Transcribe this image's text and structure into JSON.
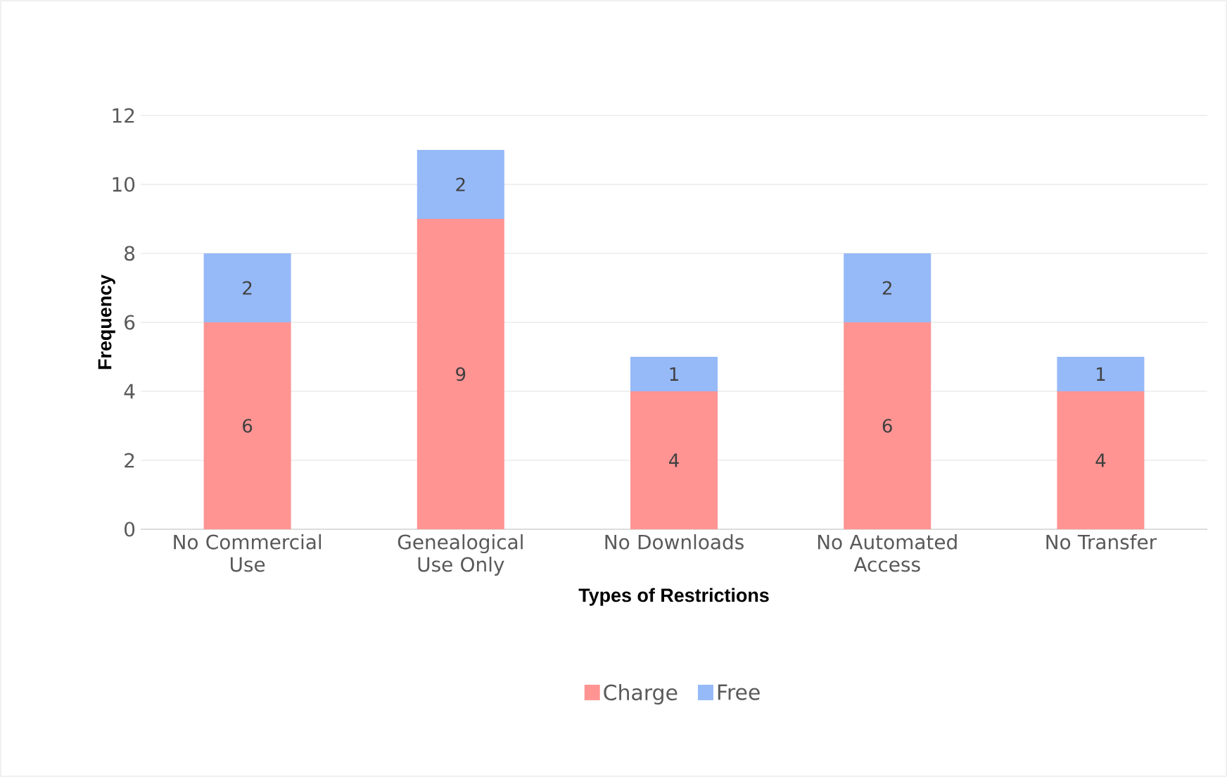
{
  "chart_data": {
    "type": "bar",
    "stacked": true,
    "xlabel": "Types of Restrictions",
    "ylabel": "Frequency",
    "categories": [
      "No Commercial Use",
      "Genealogical Use Only",
      "No Downloads",
      "No Automated Access",
      "No Transfer"
    ],
    "series": [
      {
        "name": "Charge",
        "color": "#ff9493",
        "values": [
          6,
          9,
          4,
          6,
          4
        ]
      },
      {
        "name": "Free",
        "color": "#96b9f8",
        "values": [
          2,
          2,
          1,
          2,
          1
        ]
      }
    ],
    "ylim": [
      0,
      12
    ],
    "yticks": [
      0,
      2,
      4,
      6,
      8,
      10,
      12
    ],
    "grid": "y",
    "legend": "bottom",
    "data_labels": true
  }
}
